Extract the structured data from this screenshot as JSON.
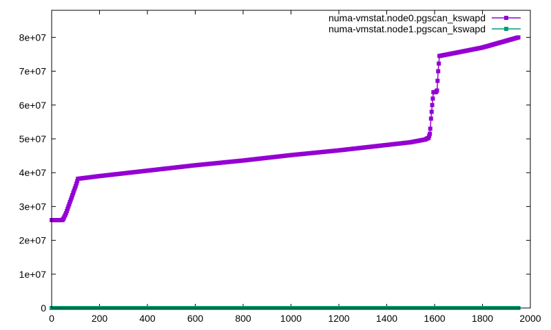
{
  "chart_data": {
    "type": "line",
    "title": "",
    "xlabel": "",
    "ylabel": "",
    "xlim": [
      0,
      2000
    ],
    "ylim": [
      0,
      88000000
    ],
    "grid": false,
    "legend_position": "top-right",
    "x_ticks": [
      0,
      200,
      400,
      600,
      800,
      1000,
      1200,
      1400,
      1600,
      1800,
      2000
    ],
    "x_tick_labels": [
      "0",
      "200",
      "400",
      "600",
      "800",
      "1000",
      "1200",
      "1400",
      "1600",
      "1800",
      "2000"
    ],
    "y_ticks": [
      0,
      10000000,
      20000000,
      30000000,
      40000000,
      50000000,
      60000000,
      70000000,
      80000000
    ],
    "y_tick_labels": [
      "0",
      "1e+07",
      "2e+07",
      "3e+07",
      "4e+07",
      "5e+07",
      "6e+07",
      "7e+07",
      "8e+07"
    ],
    "series": [
      {
        "name": "numa-vmstat.node0.pgscan_kswapd",
        "color": "#9400d3",
        "marker": "square",
        "points": [
          [
            0,
            26000000
          ],
          [
            45,
            26000000
          ],
          [
            50,
            26500000
          ],
          [
            60,
            28000000
          ],
          [
            70,
            30000000
          ],
          [
            80,
            32000000
          ],
          [
            90,
            34000000
          ],
          [
            100,
            36000000
          ],
          [
            110,
            38200000
          ],
          [
            200,
            39000000
          ],
          [
            400,
            40600000
          ],
          [
            600,
            42200000
          ],
          [
            800,
            43600000
          ],
          [
            1000,
            45200000
          ],
          [
            1200,
            46600000
          ],
          [
            1400,
            48200000
          ],
          [
            1500,
            49000000
          ],
          [
            1560,
            49800000
          ],
          [
            1575,
            50300000
          ],
          [
            1580,
            51500000
          ],
          [
            1582,
            53000000
          ],
          [
            1585,
            56000000
          ],
          [
            1590,
            60000000
          ],
          [
            1595,
            63800000
          ],
          [
            1605,
            63800000
          ],
          [
            1610,
            64300000
          ],
          [
            1615,
            70000000
          ],
          [
            1620,
            74500000
          ],
          [
            1700,
            75600000
          ],
          [
            1800,
            77000000
          ],
          [
            1900,
            79000000
          ],
          [
            1950,
            80000000
          ]
        ]
      },
      {
        "name": "numa-vmstat.node1.pgscan_kswapd",
        "color": "#009e73",
        "marker": "square",
        "points": [
          [
            0,
            0
          ],
          [
            1950,
            0
          ]
        ]
      }
    ]
  }
}
